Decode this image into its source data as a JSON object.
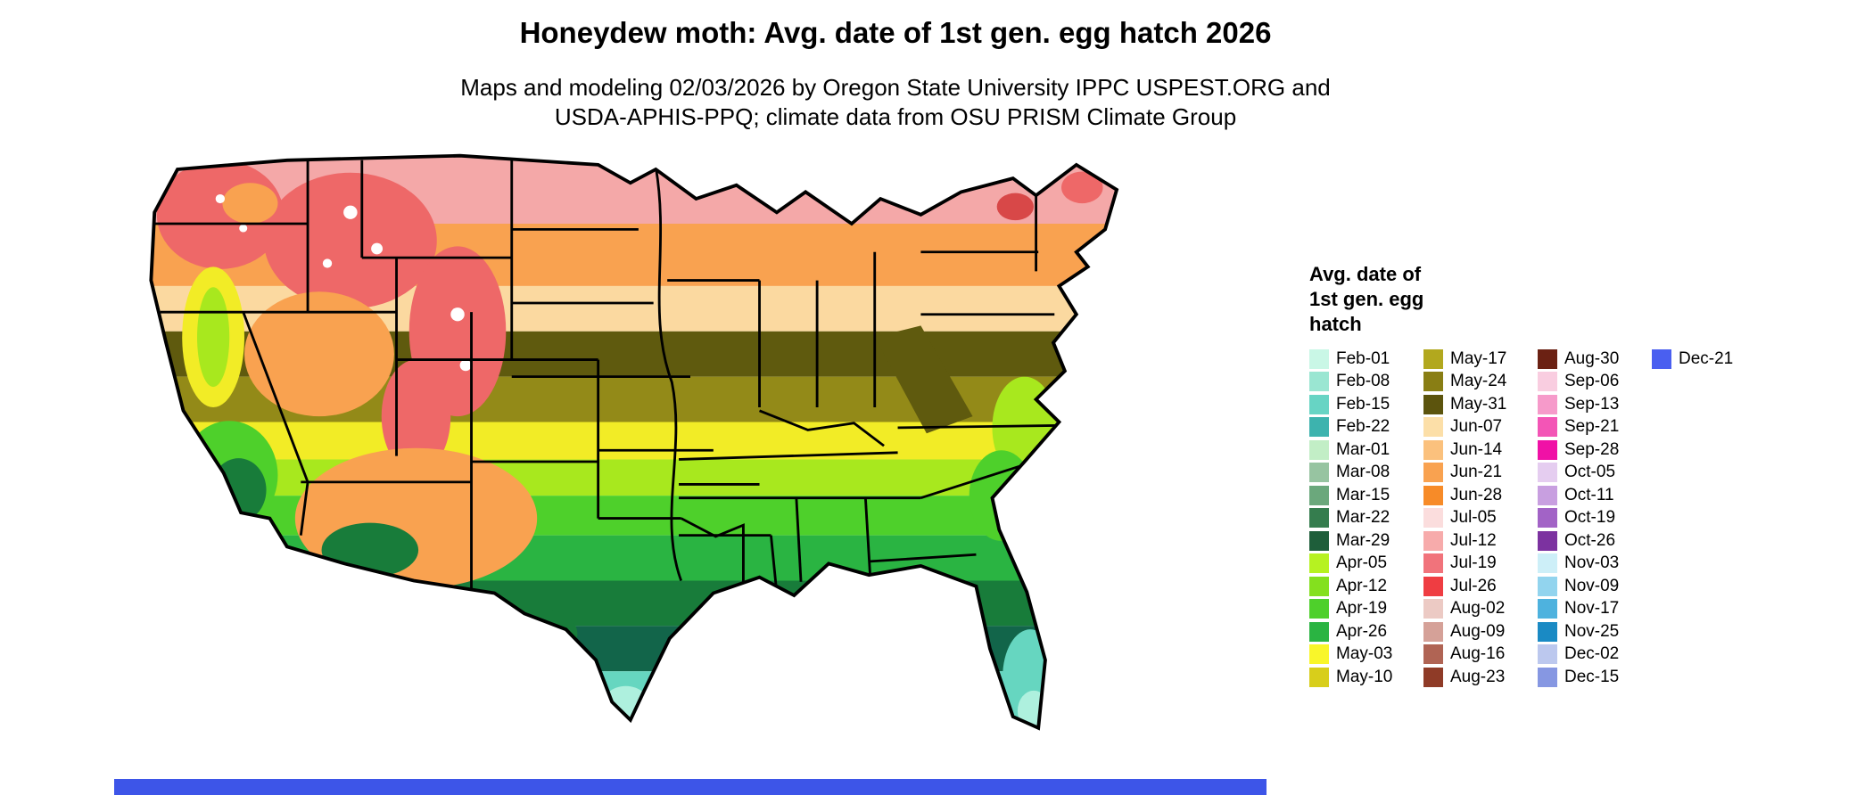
{
  "header": {
    "title": "Honeydew moth: Avg. date of 1st gen. egg hatch 2026",
    "subtitle1": "Maps and modeling 02/03/2026 by Oregon State University IPPC USPEST.ORG and",
    "subtitle2": "USDA-APHIS-PPQ; climate data from OSU PRISM Climate Group"
  },
  "legend": {
    "title": "Avg. date of\n1st gen. egg\nhatch",
    "columns": [
      [
        {
          "label": "Feb-01",
          "color": "#c9f7e6"
        },
        {
          "label": "Feb-08",
          "color": "#9ae6d2"
        },
        {
          "label": "Feb-15",
          "color": "#67d4c4"
        },
        {
          "label": "Feb-22",
          "color": "#3db3ae"
        },
        {
          "label": "Mar-01",
          "color": "#c2eec6"
        },
        {
          "label": "Mar-08",
          "color": "#97c4a1"
        },
        {
          "label": "Mar-15",
          "color": "#6ba87c"
        },
        {
          "label": "Mar-22",
          "color": "#357d4e"
        },
        {
          "label": "Mar-29",
          "color": "#1e5e3a"
        },
        {
          "label": "Apr-05",
          "color": "#b6f221"
        },
        {
          "label": "Apr-12",
          "color": "#84e01e"
        },
        {
          "label": "Apr-19",
          "color": "#4ed02b"
        },
        {
          "label": "Apr-26",
          "color": "#2ab442"
        },
        {
          "label": "May-03",
          "color": "#f9f62a"
        },
        {
          "label": "May-10",
          "color": "#d8ce1b"
        }
      ],
      [
        {
          "label": "May-17",
          "color": "#b2a81e"
        },
        {
          "label": "May-24",
          "color": "#897e14"
        },
        {
          "label": "May-31",
          "color": "#5c540d"
        },
        {
          "label": "Jun-07",
          "color": "#fcdfa8"
        },
        {
          "label": "Jun-14",
          "color": "#fbc17d"
        },
        {
          "label": "Jun-21",
          "color": "#f9a250"
        },
        {
          "label": "Jun-28",
          "color": "#f78b28"
        },
        {
          "label": "Jul-05",
          "color": "#fbdddd"
        },
        {
          "label": "Jul-12",
          "color": "#f7abab"
        },
        {
          "label": "Jul-19",
          "color": "#f1737b"
        },
        {
          "label": "Jul-26",
          "color": "#ef3d42"
        },
        {
          "label": "Aug-02",
          "color": "#eccac4"
        },
        {
          "label": "Aug-09",
          "color": "#d5a198"
        },
        {
          "label": "Aug-16",
          "color": "#b06454"
        },
        {
          "label": "Aug-23",
          "color": "#8f3b27"
        }
      ],
      [
        {
          "label": "Aug-30",
          "color": "#6b2113"
        },
        {
          "label": "Sep-06",
          "color": "#f9cde0"
        },
        {
          "label": "Sep-13",
          "color": "#f69aca"
        },
        {
          "label": "Sep-21",
          "color": "#f355b6"
        },
        {
          "label": "Sep-28",
          "color": "#f011a6"
        },
        {
          "label": "Oct-05",
          "color": "#e5cdf0"
        },
        {
          "label": "Oct-11",
          "color": "#c89fe0"
        },
        {
          "label": "Oct-19",
          "color": "#a263c6"
        },
        {
          "label": "Oct-26",
          "color": "#7c32a0"
        },
        {
          "label": "Nov-03",
          "color": "#cdeff8"
        },
        {
          "label": "Nov-09",
          "color": "#92d4ee"
        },
        {
          "label": "Nov-17",
          "color": "#4eb2de"
        },
        {
          "label": "Nov-25",
          "color": "#1a8ac4"
        },
        {
          "label": "Dec-02",
          "color": "#bcc8ee"
        },
        {
          "label": "Dec-15",
          "color": "#8697e2"
        }
      ],
      [
        {
          "label": "Dec-21",
          "color": "#4a5ff0"
        }
      ]
    ]
  },
  "map": {
    "palette": {
      "north_pink": "#f4a8a8",
      "red": "#ee6868",
      "dark_red": "#d84848",
      "orange": "#f9a250",
      "light_orange": "#fbc17d",
      "wheat": "#fbd9a0",
      "dark_olive": "#5f5a0e",
      "olive": "#938a18",
      "yellow": "#f2ec26",
      "dark_yellow": "#d8ce1b",
      "yellow_green": "#a8e81e",
      "green": "#4ed02b",
      "mid_green": "#2ab442",
      "dark_green": "#187c3a",
      "deep_teal_green": "#12654a",
      "aqua": "#66d6c0",
      "pale_aqua": "#aef0de",
      "white_patch": "#ffffff",
      "ocean_bar_blue": "#3d55e8"
    }
  }
}
